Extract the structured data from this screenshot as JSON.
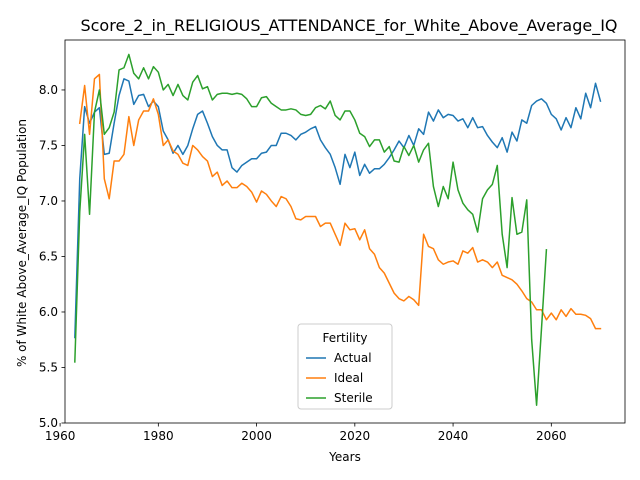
{
  "chart_data": {
    "type": "line",
    "title": "Score_2_in_RELIGIOUS_ATTENDANCE_for_White_Above_Average_IQ",
    "xlabel": "Years",
    "ylabel": "% of White Above_Average_IQ Population",
    "xlim": [
      1961,
      2075
    ],
    "ylim": [
      5.0,
      8.45
    ],
    "xticks": [
      1960,
      1980,
      2000,
      2020,
      2040,
      2060
    ],
    "yticks": [
      5.0,
      5.5,
      6.0,
      6.5,
      7.0,
      7.5,
      8.0
    ],
    "grid": false,
    "legend": {
      "title": "Fertility",
      "placement": "lower-center"
    },
    "series": [
      {
        "name": "Actual",
        "color": "#1f77b4",
        "points": [
          [
            1963,
            5.77
          ],
          [
            1964,
            7.2
          ],
          [
            1965,
            7.85
          ],
          [
            1966,
            7.7
          ],
          [
            1967,
            7.8
          ],
          [
            1968,
            7.84
          ],
          [
            1969,
            7.42
          ],
          [
            1970,
            7.43
          ],
          [
            1971,
            7.7
          ],
          [
            1972,
            7.95
          ],
          [
            1973,
            8.1
          ],
          [
            1974,
            8.08
          ],
          [
            1975,
            7.87
          ],
          [
            1976,
            7.95
          ],
          [
            1977,
            7.96
          ],
          [
            1978,
            7.85
          ],
          [
            1979,
            7.9
          ],
          [
            1980,
            7.85
          ],
          [
            1981,
            7.63
          ],
          [
            1982,
            7.55
          ],
          [
            1983,
            7.43
          ],
          [
            1984,
            7.5
          ],
          [
            1985,
            7.42
          ],
          [
            1986,
            7.5
          ],
          [
            1987,
            7.65
          ],
          [
            1988,
            7.78
          ],
          [
            1989,
            7.81
          ],
          [
            1990,
            7.7
          ],
          [
            1991,
            7.58
          ],
          [
            1992,
            7.5
          ],
          [
            1993,
            7.46
          ],
          [
            1994,
            7.46
          ],
          [
            1995,
            7.3
          ],
          [
            1996,
            7.26
          ],
          [
            1997,
            7.32
          ],
          [
            1998,
            7.35
          ],
          [
            1999,
            7.38
          ],
          [
            2000,
            7.38
          ],
          [
            2001,
            7.43
          ],
          [
            2002,
            7.44
          ],
          [
            2003,
            7.5
          ],
          [
            2004,
            7.5
          ],
          [
            2005,
            7.61
          ],
          [
            2006,
            7.61
          ],
          [
            2007,
            7.59
          ],
          [
            2008,
            7.55
          ],
          [
            2009,
            7.6
          ],
          [
            2010,
            7.62
          ],
          [
            2011,
            7.65
          ],
          [
            2012,
            7.67
          ],
          [
            2013,
            7.55
          ],
          [
            2014,
            7.48
          ],
          [
            2015,
            7.42
          ],
          [
            2016,
            7.3
          ],
          [
            2017,
            7.15
          ],
          [
            2018,
            7.42
          ],
          [
            2019,
            7.3
          ],
          [
            2020,
            7.44
          ],
          [
            2021,
            7.23
          ],
          [
            2022,
            7.33
          ],
          [
            2023,
            7.25
          ],
          [
            2024,
            7.29
          ],
          [
            2025,
            7.29
          ],
          [
            2026,
            7.33
          ],
          [
            2027,
            7.39
          ],
          [
            2028,
            7.46
          ],
          [
            2029,
            7.54
          ],
          [
            2030,
            7.48
          ],
          [
            2031,
            7.59
          ],
          [
            2032,
            7.5
          ],
          [
            2033,
            7.65
          ],
          [
            2034,
            7.6
          ],
          [
            2035,
            7.8
          ],
          [
            2036,
            7.72
          ],
          [
            2037,
            7.82
          ],
          [
            2038,
            7.75
          ],
          [
            2039,
            7.78
          ],
          [
            2040,
            7.77
          ],
          [
            2041,
            7.72
          ],
          [
            2042,
            7.74
          ],
          [
            2043,
            7.66
          ],
          [
            2044,
            7.75
          ],
          [
            2045,
            7.66
          ],
          [
            2046,
            7.67
          ],
          [
            2047,
            7.59
          ],
          [
            2048,
            7.53
          ],
          [
            2049,
            7.48
          ],
          [
            2050,
            7.57
          ],
          [
            2051,
            7.44
          ],
          [
            2052,
            7.62
          ],
          [
            2053,
            7.54
          ],
          [
            2054,
            7.73
          ],
          [
            2055,
            7.7
          ],
          [
            2056,
            7.86
          ],
          [
            2057,
            7.9
          ],
          [
            2058,
            7.92
          ],
          [
            2059,
            7.88
          ],
          [
            2060,
            7.78
          ],
          [
            2061,
            7.74
          ],
          [
            2062,
            7.64
          ],
          [
            2063,
            7.75
          ],
          [
            2064,
            7.66
          ],
          [
            2065,
            7.84
          ],
          [
            2066,
            7.74
          ],
          [
            2067,
            7.97
          ],
          [
            2068,
            7.84
          ],
          [
            2069,
            8.06
          ],
          [
            2070,
            7.9
          ]
        ]
      },
      {
        "name": "Ideal",
        "color": "#ff7f0e",
        "points": [
          [
            1964,
            7.7
          ],
          [
            1965,
            8.04
          ],
          [
            1966,
            7.6
          ],
          [
            1967,
            8.1
          ],
          [
            1968,
            8.14
          ],
          [
            1969,
            7.2
          ],
          [
            1970,
            7.02
          ],
          [
            1971,
            7.36
          ],
          [
            1972,
            7.36
          ],
          [
            1973,
            7.42
          ],
          [
            1974,
            7.76
          ],
          [
            1975,
            7.5
          ],
          [
            1976,
            7.73
          ],
          [
            1977,
            7.81
          ],
          [
            1978,
            7.81
          ],
          [
            1979,
            7.92
          ],
          [
            1980,
            7.78
          ],
          [
            1981,
            7.5
          ],
          [
            1982,
            7.55
          ],
          [
            1983,
            7.45
          ],
          [
            1984,
            7.42
          ],
          [
            1985,
            7.34
          ],
          [
            1986,
            7.32
          ],
          [
            1987,
            7.5
          ],
          [
            1988,
            7.46
          ],
          [
            1989,
            7.4
          ],
          [
            1990,
            7.36
          ],
          [
            1991,
            7.22
          ],
          [
            1992,
            7.26
          ],
          [
            1993,
            7.14
          ],
          [
            1994,
            7.18
          ],
          [
            1995,
            7.12
          ],
          [
            1996,
            7.12
          ],
          [
            1997,
            7.16
          ],
          [
            1998,
            7.13
          ],
          [
            1999,
            7.08
          ],
          [
            2000,
            6.99
          ],
          [
            2001,
            7.09
          ],
          [
            2002,
            7.06
          ],
          [
            2003,
            7.0
          ],
          [
            2004,
            6.95
          ],
          [
            2005,
            7.04
          ],
          [
            2006,
            7.02
          ],
          [
            2007,
            6.95
          ],
          [
            2008,
            6.84
          ],
          [
            2009,
            6.83
          ],
          [
            2010,
            6.86
          ],
          [
            2011,
            6.86
          ],
          [
            2012,
            6.86
          ],
          [
            2013,
            6.77
          ],
          [
            2014,
            6.8
          ],
          [
            2015,
            6.8
          ],
          [
            2016,
            6.7
          ],
          [
            2017,
            6.6
          ],
          [
            2018,
            6.8
          ],
          [
            2019,
            6.74
          ],
          [
            2020,
            6.75
          ],
          [
            2021,
            6.65
          ],
          [
            2022,
            6.74
          ],
          [
            2023,
            6.57
          ],
          [
            2024,
            6.52
          ],
          [
            2025,
            6.4
          ],
          [
            2026,
            6.35
          ],
          [
            2027,
            6.26
          ],
          [
            2028,
            6.17
          ],
          [
            2029,
            6.12
          ],
          [
            2030,
            6.1
          ],
          [
            2031,
            6.14
          ],
          [
            2032,
            6.11
          ],
          [
            2033,
            6.06
          ],
          [
            2034,
            6.7
          ],
          [
            2035,
            6.59
          ],
          [
            2036,
            6.57
          ],
          [
            2037,
            6.47
          ],
          [
            2038,
            6.43
          ],
          [
            2039,
            6.45
          ],
          [
            2040,
            6.46
          ],
          [
            2041,
            6.43
          ],
          [
            2042,
            6.55
          ],
          [
            2043,
            6.53
          ],
          [
            2044,
            6.58
          ],
          [
            2045,
            6.45
          ],
          [
            2046,
            6.47
          ],
          [
            2047,
            6.45
          ],
          [
            2048,
            6.4
          ],
          [
            2049,
            6.45
          ],
          [
            2050,
            6.33
          ],
          [
            2051,
            6.31
          ],
          [
            2052,
            6.29
          ],
          [
            2053,
            6.25
          ],
          [
            2054,
            6.19
          ],
          [
            2055,
            6.12
          ],
          [
            2056,
            6.09
          ],
          [
            2057,
            6.02
          ],
          [
            2058,
            6.02
          ],
          [
            2059,
            5.93
          ],
          [
            2060,
            5.99
          ],
          [
            2061,
            5.93
          ],
          [
            2062,
            6.02
          ],
          [
            2063,
            5.96
          ],
          [
            2064,
            6.03
          ],
          [
            2065,
            5.98
          ],
          [
            2066,
            5.98
          ],
          [
            2067,
            5.97
          ],
          [
            2068,
            5.94
          ],
          [
            2069,
            5.85
          ],
          [
            2070,
            5.85
          ]
        ]
      },
      {
        "name": "Sterile",
        "color": "#2ca02c",
        "points": [
          [
            1963,
            5.55
          ],
          [
            1964,
            6.9
          ],
          [
            1965,
            7.6
          ],
          [
            1966,
            6.88
          ],
          [
            1967,
            7.8
          ],
          [
            1968,
            8.0
          ],
          [
            1969,
            7.6
          ],
          [
            1970,
            7.66
          ],
          [
            1971,
            7.8
          ],
          [
            1972,
            8.18
          ],
          [
            1973,
            8.2
          ],
          [
            1974,
            8.32
          ],
          [
            1975,
            8.15
          ],
          [
            1976,
            8.1
          ],
          [
            1977,
            8.2
          ],
          [
            1978,
            8.1
          ],
          [
            1979,
            8.21
          ],
          [
            1980,
            8.16
          ],
          [
            1981,
            8.0
          ],
          [
            1982,
            8.05
          ],
          [
            1983,
            7.95
          ],
          [
            1984,
            8.05
          ],
          [
            1985,
            7.95
          ],
          [
            1986,
            7.91
          ],
          [
            1987,
            8.07
          ],
          [
            1988,
            8.13
          ],
          [
            1989,
            8.01
          ],
          [
            1990,
            8.03
          ],
          [
            1991,
            7.91
          ],
          [
            1992,
            7.96
          ],
          [
            1993,
            7.97
          ],
          [
            1994,
            7.97
          ],
          [
            1995,
            7.96
          ],
          [
            1996,
            7.97
          ],
          [
            1997,
            7.96
          ],
          [
            1998,
            7.92
          ],
          [
            1999,
            7.85
          ],
          [
            2000,
            7.85
          ],
          [
            2001,
            7.93
          ],
          [
            2002,
            7.94
          ],
          [
            2003,
            7.88
          ],
          [
            2004,
            7.85
          ],
          [
            2005,
            7.82
          ],
          [
            2006,
            7.82
          ],
          [
            2007,
            7.83
          ],
          [
            2008,
            7.82
          ],
          [
            2009,
            7.78
          ],
          [
            2010,
            7.77
          ],
          [
            2011,
            7.78
          ],
          [
            2012,
            7.84
          ],
          [
            2013,
            7.86
          ],
          [
            2014,
            7.83
          ],
          [
            2015,
            7.9
          ],
          [
            2016,
            7.77
          ],
          [
            2017,
            7.73
          ],
          [
            2018,
            7.81
          ],
          [
            2019,
            7.81
          ],
          [
            2020,
            7.73
          ],
          [
            2021,
            7.61
          ],
          [
            2022,
            7.58
          ],
          [
            2023,
            7.49
          ],
          [
            2024,
            7.55
          ],
          [
            2025,
            7.55
          ],
          [
            2026,
            7.44
          ],
          [
            2027,
            7.49
          ],
          [
            2028,
            7.36
          ],
          [
            2029,
            7.35
          ],
          [
            2030,
            7.49
          ],
          [
            2031,
            7.41
          ],
          [
            2032,
            7.5
          ],
          [
            2033,
            7.35
          ],
          [
            2034,
            7.46
          ],
          [
            2035,
            7.52
          ],
          [
            2036,
            7.13
          ],
          [
            2037,
            6.95
          ],
          [
            2038,
            7.13
          ],
          [
            2039,
            7.02
          ],
          [
            2040,
            7.35
          ],
          [
            2041,
            7.1
          ],
          [
            2042,
            6.98
          ],
          [
            2043,
            6.92
          ],
          [
            2044,
            6.88
          ],
          [
            2045,
            6.72
          ],
          [
            2046,
            7.02
          ],
          [
            2047,
            7.1
          ],
          [
            2048,
            7.15
          ],
          [
            2049,
            7.32
          ],
          [
            2050,
            6.7
          ],
          [
            2051,
            6.4
          ],
          [
            2052,
            7.03
          ],
          [
            2053,
            6.7
          ],
          [
            2054,
            6.72
          ],
          [
            2055,
            7.01
          ],
          [
            2056,
            5.75
          ],
          [
            2057,
            5.16
          ],
          [
            2058,
            5.85
          ],
          [
            2059,
            6.56
          ]
        ]
      }
    ]
  }
}
